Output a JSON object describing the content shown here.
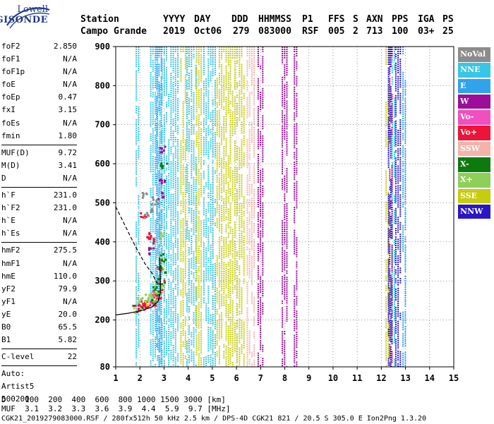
{
  "logo": {
    "line1": "Lowell",
    "line2": "DIGISONDE"
  },
  "header": {
    "row1": [
      "Station",
      "YYYY",
      "DAY",
      "DDD",
      "HHMMSS",
      "P1",
      "FFS",
      "S",
      "AXN",
      "PPS",
      "IGA",
      "PS"
    ],
    "row2": [
      "Campo Grande",
      "2019",
      "Oct06",
      "279",
      "083000",
      "RSF",
      "005",
      "2",
      "713",
      "100",
      "03+",
      "25"
    ]
  },
  "params": {
    "group1": [
      {
        "name": "foF2",
        "value": "2.850"
      },
      {
        "name": "foF1",
        "value": "N/A"
      },
      {
        "name": "foF1p",
        "value": "N/A"
      },
      {
        "name": "foE",
        "value": "N/A"
      },
      {
        "name": "foEp",
        "value": "0.47"
      },
      {
        "name": "fxI",
        "value": "3.15"
      },
      {
        "name": "foEs",
        "value": "N/A"
      },
      {
        "name": "fmin",
        "value": "1.80"
      }
    ],
    "group2": [
      {
        "name": "MUF(D)",
        "value": "9.72"
      },
      {
        "name": "M(D)",
        "value": "3.41"
      },
      {
        "name": "D",
        "value": "N/A"
      }
    ],
    "group3": [
      {
        "name": "h`F",
        "value": "231.0"
      },
      {
        "name": "h`F2",
        "value": "231.0"
      },
      {
        "name": "h`E",
        "value": "N/A"
      },
      {
        "name": "h`Es",
        "value": "N/A"
      }
    ],
    "group4": [
      {
        "name": "hmF2",
        "value": "275.5"
      },
      {
        "name": "hmF1",
        "value": "N/A"
      },
      {
        "name": "hmE",
        "value": "110.0"
      },
      {
        "name": "yF2",
        "value": "79.9"
      },
      {
        "name": "yF1",
        "value": "N/A"
      },
      {
        "name": "yE",
        "value": "20.0"
      },
      {
        "name": "B0",
        "value": "65.5"
      },
      {
        "name": "B1",
        "value": "5.82"
      }
    ],
    "clevel": {
      "name": "C-level",
      "value": "22"
    },
    "auto": [
      "Auto:",
      "Artist5",
      "500200"
    ]
  },
  "legend": [
    {
      "label": "NoVal",
      "color": "#8c8c8c"
    },
    {
      "label": "NNE",
      "color": "#37c6e6"
    },
    {
      "label": "E",
      "color": "#2fa3ee"
    },
    {
      "label": "W",
      "color": "#9c0d9c"
    },
    {
      "label": "Vo-",
      "color": "#f04fbe"
    },
    {
      "label": "Vo+",
      "color": "#ee1337"
    },
    {
      "label": "SSW",
      "color": "#f4b3aa"
    },
    {
      "label": "X-",
      "color": "#0c7a0c"
    },
    {
      "label": "X+",
      "color": "#8ecf5a"
    },
    {
      "label": "SSE",
      "color": "#c6cc10"
    },
    {
      "label": "NNW",
      "color": "#2a16c6"
    }
  ],
  "chart_data": {
    "type": "scatter",
    "title": "",
    "xlabel": "",
    "ylabel": "",
    "xlim": [
      1,
      15
    ],
    "ylim": [
      80,
      900
    ],
    "x_ticks": [
      "1",
      "2",
      "3",
      "4",
      "5",
      "6",
      "7",
      "8",
      "9",
      "10",
      "11",
      "12",
      "13",
      "14",
      "15"
    ],
    "y_ticks": [
      "80",
      "200",
      "300",
      "400",
      "500",
      "600",
      "700",
      "800",
      "900"
    ],
    "grid": true,
    "legend_position": "right",
    "series": [
      {
        "name": "NNE",
        "color": "#37c6e6",
        "bands": [
          [
            1.85,
            1.95
          ],
          [
            2.45,
            3.6
          ],
          [
            3.95,
            4.35
          ],
          [
            4.65,
            5.15
          ],
          [
            12.45,
            12.55
          ]
        ]
      },
      {
        "name": "E",
        "color": "#2fa3ee",
        "bands": [
          [
            2.7,
            2.9
          ],
          [
            12.9,
            13.05
          ]
        ]
      },
      {
        "name": "SSE",
        "color": "#c6cc10",
        "bands": [
          [
            3.7,
            3.9
          ],
          [
            4.35,
            4.6
          ],
          [
            5.2,
            5.7
          ],
          [
            5.75,
            6.4
          ],
          [
            12.2,
            12.35
          ]
        ]
      },
      {
        "name": "SSW",
        "color": "#f4b3aa",
        "bands": [
          [
            6.45,
            6.75
          ]
        ]
      },
      {
        "name": "W",
        "color": "#9c0d9c",
        "bands": [
          [
            6.9,
            7.1
          ],
          [
            7.9,
            8.1
          ],
          [
            8.4,
            8.55
          ],
          [
            12.35,
            12.5
          ]
        ]
      },
      {
        "name": "NNW",
        "color": "#2a16c6",
        "bands": [
          [
            12.6,
            12.8
          ],
          [
            12.3,
            12.4
          ]
        ]
      }
    ],
    "trace": [
      {
        "f": 1.85,
        "h": 230
      },
      {
        "f": 2.1,
        "h": 237
      },
      {
        "f": 2.35,
        "h": 245
      },
      {
        "f": 2.55,
        "h": 258
      },
      {
        "f": 2.7,
        "h": 275
      },
      {
        "f": 2.8,
        "h": 295
      },
      {
        "f": 2.85,
        "h": 330
      }
    ],
    "profile_solid": [
      {
        "f": 1.0,
        "h": 213
      },
      {
        "f": 1.5,
        "h": 217
      },
      {
        "f": 2.0,
        "h": 223
      },
      {
        "f": 2.5,
        "h": 233
      },
      {
        "f": 2.75,
        "h": 247
      },
      {
        "f": 2.85,
        "h": 270
      },
      {
        "f": 2.85,
        "h": 300
      },
      {
        "f": 2.82,
        "h": 360
      }
    ],
    "profile_dashed": [
      {
        "f": 1.0,
        "h": 490
      },
      {
        "f": 1.4,
        "h": 440
      },
      {
        "f": 1.8,
        "h": 390
      },
      {
        "f": 2.2,
        "h": 345
      },
      {
        "f": 2.5,
        "h": 320
      },
      {
        "f": 2.7,
        "h": 295
      }
    ],
    "trace_series": [
      {
        "name": "Vo+",
        "color": "#ee1337",
        "points": [
          {
            "f": 1.95,
            "h": 232
          },
          {
            "f": 2.05,
            "h": 238
          },
          {
            "f": 2.15,
            "h": 240
          },
          {
            "f": 2.3,
            "h": 243
          },
          {
            "f": 2.5,
            "h": 250
          },
          {
            "f": 2.6,
            "h": 258
          },
          {
            "f": 2.7,
            "h": 265
          },
          {
            "f": 2.4,
            "h": 405
          },
          {
            "f": 2.3,
            "h": 420
          },
          {
            "f": 2.1,
            "h": 470
          }
        ]
      },
      {
        "name": "X+",
        "color": "#8ecf5a",
        "points": [
          {
            "f": 2.0,
            "h": 254
          },
          {
            "f": 2.2,
            "h": 262
          },
          {
            "f": 2.4,
            "h": 258
          },
          {
            "f": 2.55,
            "h": 270
          },
          {
            "f": 2.75,
            "h": 280
          },
          {
            "f": 2.85,
            "h": 350
          },
          {
            "f": 2.9,
            "h": 420
          }
        ]
      },
      {
        "name": "X-",
        "color": "#0c7a0c",
        "points": [
          {
            "f": 2.65,
            "h": 285
          },
          {
            "f": 2.75,
            "h": 300
          },
          {
            "f": 2.8,
            "h": 330
          },
          {
            "f": 2.9,
            "h": 360
          },
          {
            "f": 2.95,
            "h": 600
          }
        ]
      },
      {
        "name": "W",
        "color": "#9c0d9c",
        "points": [
          {
            "f": 2.85,
            "h": 520
          },
          {
            "f": 2.9,
            "h": 560
          },
          {
            "f": 2.95,
            "h": 640
          },
          {
            "f": 2.45,
            "h": 380
          }
        ]
      },
      {
        "name": "NoVal",
        "color": "#8c8c8c",
        "points": [
          {
            "f": 2.3,
            "h": 470
          },
          {
            "f": 2.45,
            "h": 490
          },
          {
            "f": 2.6,
            "h": 510
          },
          {
            "f": 2.2,
            "h": 520
          }
        ]
      }
    ]
  },
  "footer": {
    "d_row": "D    100  200  400  600  800 1000 1500 3000 [km]",
    "muf_row": "MUF  3.1  3.2  3.3  3.6  3.9  4.4  5.9  9.7 [MHz]",
    "file_row": "CGK21_2019279083000.RSF / 280fx512h 50 kHz 2.5 km / DPS-4D CGK21 821 / 20.5 S 305.0 E Ion2Png 1.3.20"
  }
}
